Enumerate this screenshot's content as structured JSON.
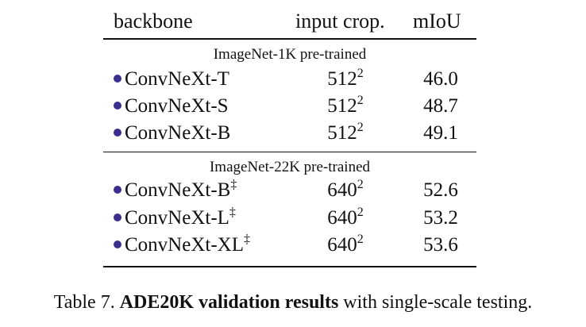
{
  "headers": {
    "backbone": "backbone",
    "crop": "input crop.",
    "miou": "mIoU"
  },
  "groups": [
    {
      "label": "ImageNet-1K pre-trained",
      "rows": [
        {
          "backbone": "ConvNeXt-T",
          "mark": "",
          "crop": "512",
          "exp": "2",
          "miou": "46.0"
        },
        {
          "backbone": "ConvNeXt-S",
          "mark": "",
          "crop": "512",
          "exp": "2",
          "miou": "48.7"
        },
        {
          "backbone": "ConvNeXt-B",
          "mark": "",
          "crop": "512",
          "exp": "2",
          "miou": "49.1"
        }
      ]
    },
    {
      "label": "ImageNet-22K pre-trained",
      "rows": [
        {
          "backbone": "ConvNeXt-B",
          "mark": "‡",
          "crop": "640",
          "exp": "2",
          "miou": "52.6"
        },
        {
          "backbone": "ConvNeXt-L",
          "mark": "‡",
          "crop": "640",
          "exp": "2",
          "miou": "53.2"
        },
        {
          "backbone": "ConvNeXt-XL",
          "mark": "‡",
          "crop": "640",
          "exp": "2",
          "miou": "53.6"
        }
      ]
    }
  ],
  "caption": {
    "prefix": "Table 7. ",
    "bold": "ADE20K validation results",
    "suffix": " with single-scale testing."
  },
  "colors": {
    "dot": "#3b2e8f"
  }
}
